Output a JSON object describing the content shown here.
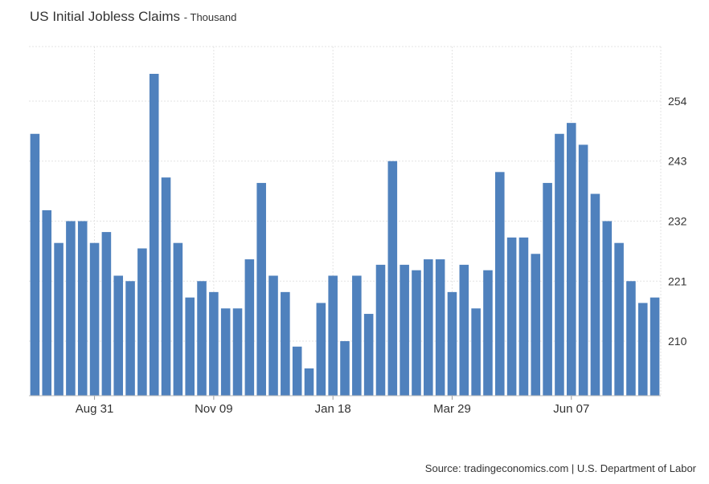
{
  "chart_data": {
    "type": "bar",
    "title": "US Initial Jobless Claims",
    "subtitle": "- Thousand",
    "xlabel": "",
    "ylabel": "",
    "ylim": [
      200,
      264
    ],
    "y_ticks": [
      210,
      221,
      232,
      243,
      254
    ],
    "x_tick_labels": [
      {
        "label": "Aug 31",
        "bar_index": 5
      },
      {
        "label": "Nov 09",
        "bar_index": 15
      },
      {
        "label": "Jan 18",
        "bar_index": 25
      },
      {
        "label": "Mar 29",
        "bar_index": 35
      },
      {
        "label": "Jun 07",
        "bar_index": 45
      }
    ],
    "series": [
      {
        "name": "Initial Jobless Claims",
        "color": "#4f81bd",
        "values": [
          248,
          234,
          228,
          232,
          232,
          228,
          230,
          222,
          221,
          227,
          259,
          240,
          228,
          218,
          221,
          219,
          216,
          216,
          225,
          239,
          222,
          219,
          209,
          205,
          217,
          222,
          210,
          222,
          215,
          224,
          243,
          224,
          223,
          225,
          225,
          219,
          224,
          216,
          223,
          241,
          229,
          229,
          226,
          239,
          248,
          250,
          246,
          237,
          232,
          228,
          221,
          217,
          218
        ]
      }
    ],
    "grid": true,
    "y_axis_position": "right"
  },
  "source_text": "Source: tradingeconomics.com | U.S. Department of Labor"
}
